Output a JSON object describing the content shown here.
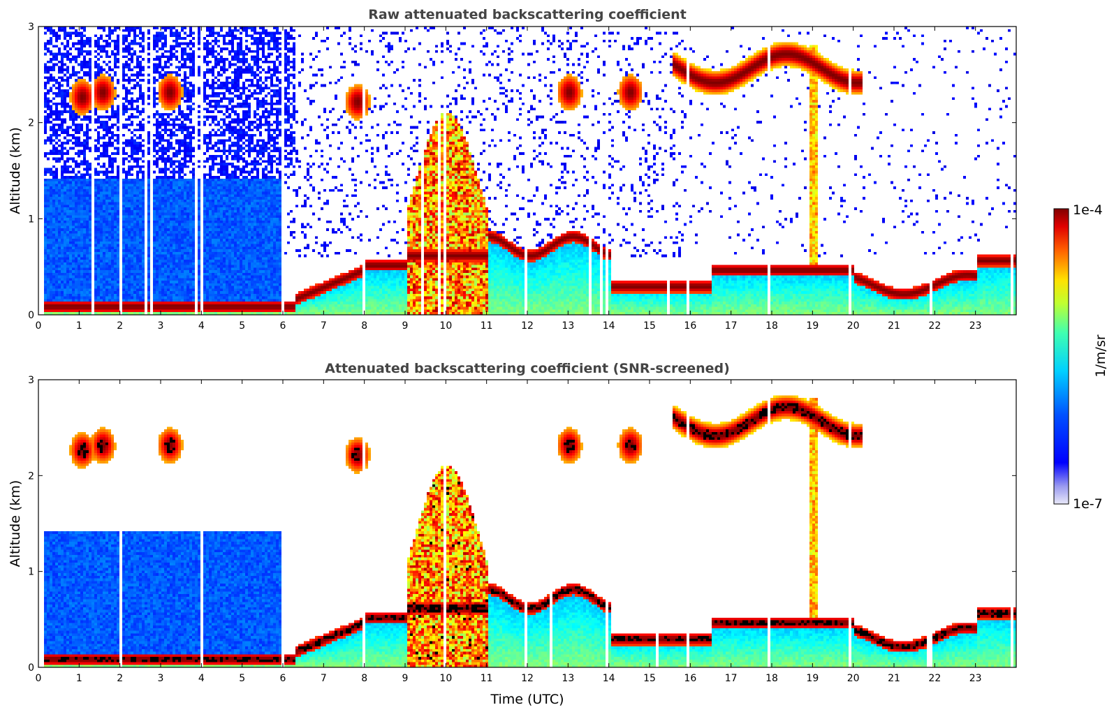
{
  "chart_data": [
    {
      "type": "heatmap",
      "title": "Raw attenuated backscattering coefficient",
      "ylabel": "Altitude (km)",
      "xlabel": "",
      "xlim": [
        0,
        24
      ],
      "ylim": [
        0,
        3
      ],
      "xticks": [
        "0",
        "1",
        "2",
        "3",
        "4",
        "5",
        "6",
        "7",
        "8",
        "9",
        "10",
        "11",
        "12",
        "13",
        "14",
        "15",
        "16",
        "17",
        "18",
        "19",
        "20",
        "21",
        "22",
        "23"
      ],
      "yticks": [
        "0",
        "1",
        "2",
        "3"
      ],
      "grid": false,
      "features": [
        {
          "label": "ground-level aerosol layer",
          "x_range": [
            0,
            6.5
          ],
          "altitude_km": 0.07,
          "intensity": "high"
        },
        {
          "label": "boundary layer top",
          "x_range": [
            6.5,
            24
          ],
          "altitude_km": [
            0.2,
            0.6
          ],
          "intensity": "high"
        },
        {
          "label": "convective plume",
          "x_range": [
            9,
            11
          ],
          "altitude_km": [
            0,
            2
          ],
          "intensity": "high"
        },
        {
          "label": "elevated cloud layer",
          "x_range": [
            15.5,
            20.2
          ],
          "altitude_km": [
            2.5,
            2.8
          ],
          "intensity": "high"
        },
        {
          "label": "cloud streak",
          "x_range": [
            18.9,
            19.1
          ],
          "altitude_km": [
            0.4,
            2.7
          ],
          "intensity": "high"
        }
      ]
    },
    {
      "type": "heatmap",
      "title": "Attenuated backscattering coefficient (SNR-screened)",
      "ylabel": "Altitude (km)",
      "xlabel": "Time (UTC)",
      "xlim": [
        0,
        24
      ],
      "ylim": [
        0,
        3
      ],
      "xticks": [
        "0",
        "1",
        "2",
        "3",
        "4",
        "5",
        "6",
        "7",
        "8",
        "9",
        "10",
        "11",
        "12",
        "13",
        "14",
        "15",
        "16",
        "17",
        "18",
        "19",
        "20",
        "21",
        "22",
        "23"
      ],
      "yticks": [
        "0",
        "1",
        "2",
        "3"
      ],
      "grid": false
    }
  ],
  "colorbar": {
    "max_label": "1e-4",
    "min_label": "1e-7",
    "unit_label": "1/m/sr",
    "colormap": "jet",
    "scale": "log"
  }
}
